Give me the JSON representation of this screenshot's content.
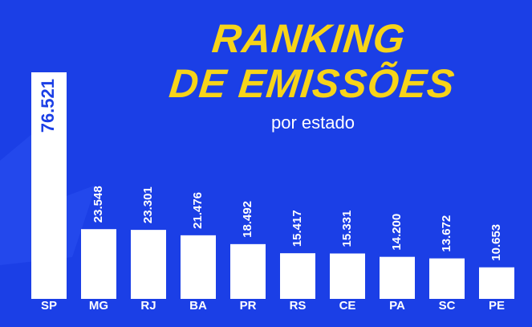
{
  "chart_data": {
    "type": "bar",
    "title": [
      "RANKING",
      "DE EMISSÕES"
    ],
    "subtitle": "por estado",
    "categories": [
      "SP",
      "MG",
      "RJ",
      "BA",
      "PR",
      "RS",
      "CE",
      "PA",
      "SC",
      "PE"
    ],
    "values": [
      76521,
      23548,
      23301,
      21476,
      18492,
      15417,
      15331,
      14200,
      13672,
      10653
    ],
    "value_labels": [
      "76.521",
      "23.548",
      "23.301",
      "21.476",
      "18.492",
      "15.417",
      "15.331",
      "14.200",
      "13.672",
      "10.653"
    ],
    "color": "#ffffff"
  }
}
